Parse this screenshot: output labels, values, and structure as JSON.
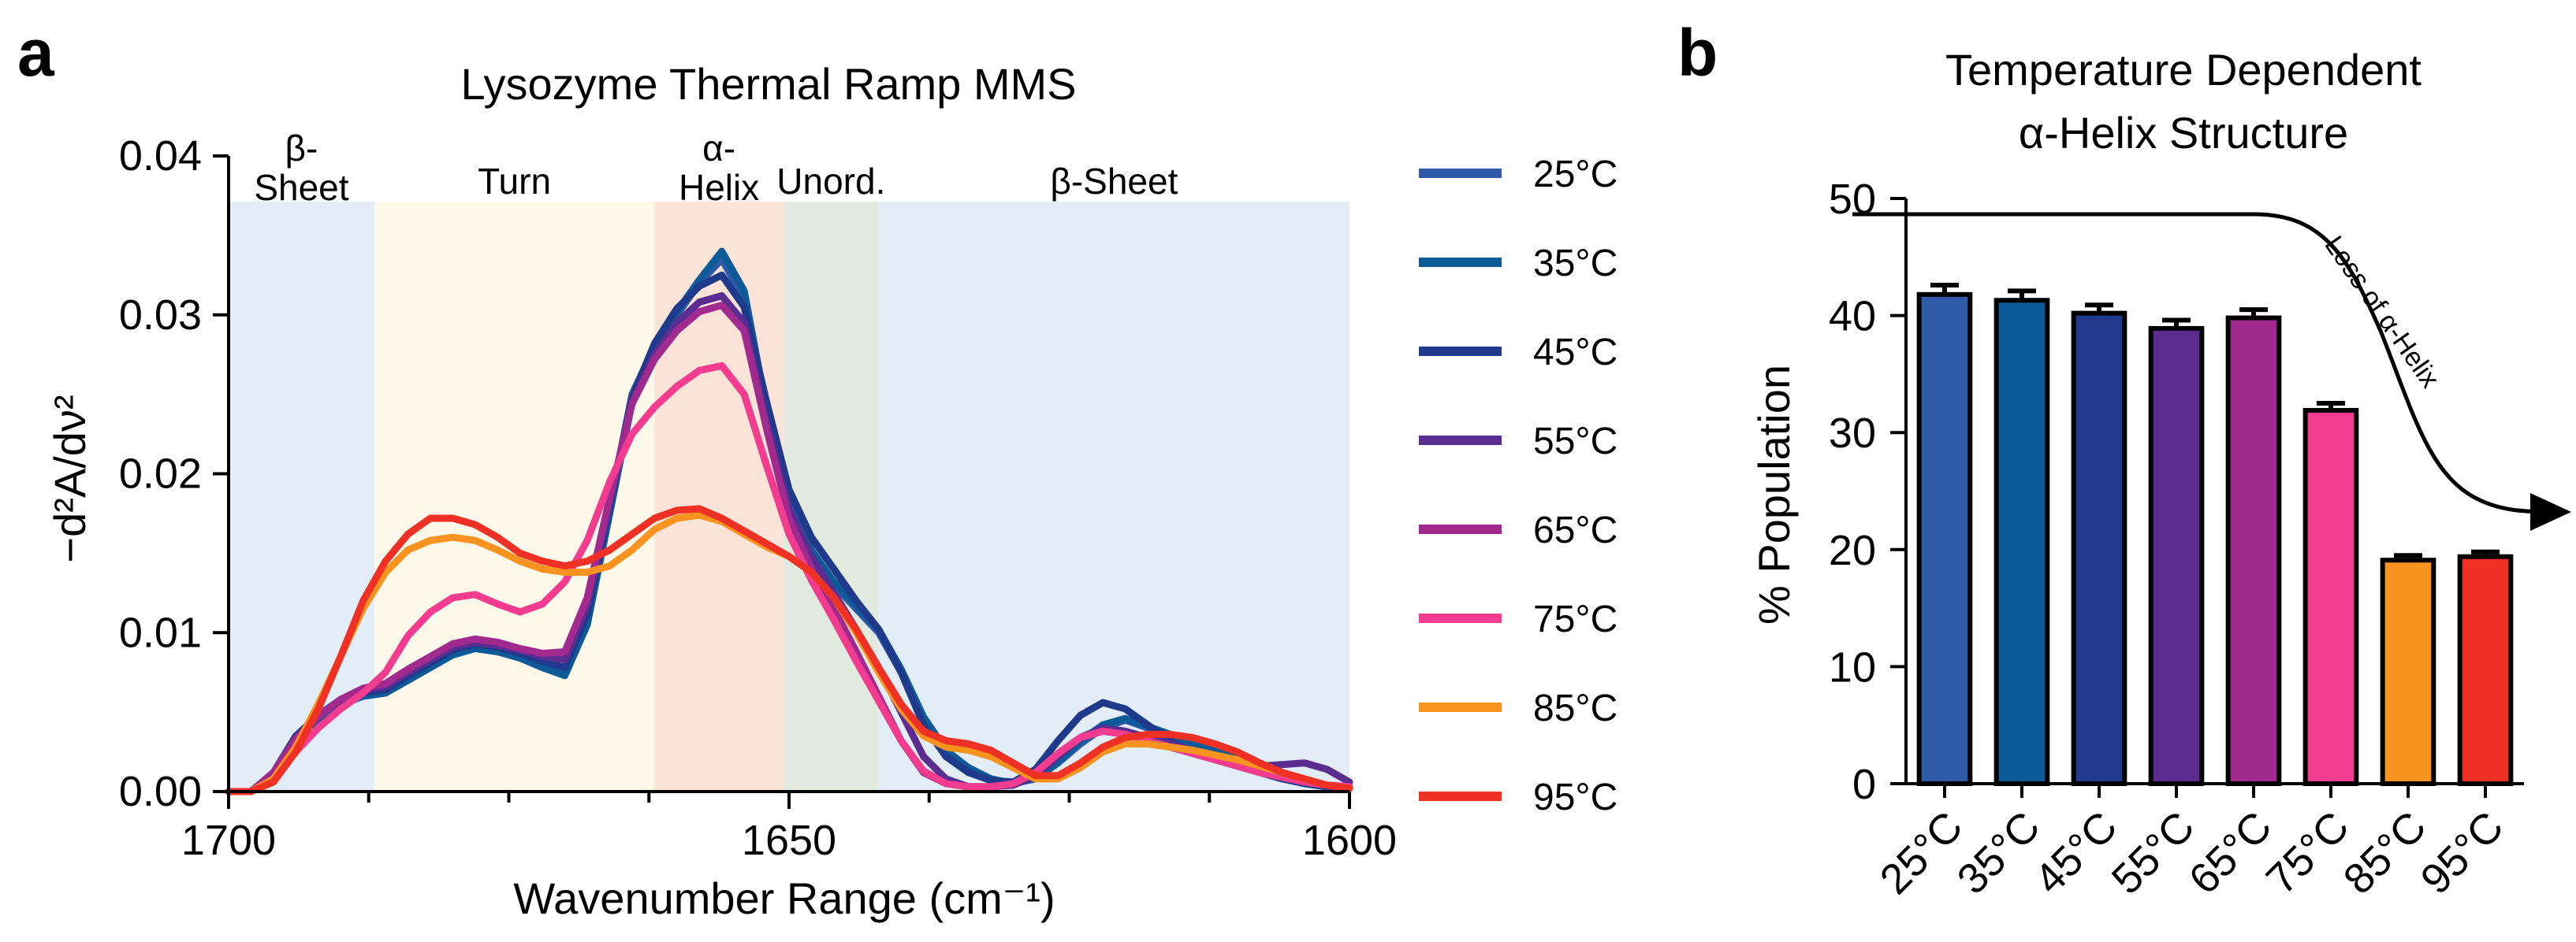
{
  "chart_data": [
    {
      "panel": "a",
      "type": "line",
      "title": "Lysozyme Thermal Ramp MMS",
      "xlabel": "Wavenumber Range (cm⁻¹)",
      "ylabel": "−d²A/dν²",
      "xlim": [
        1700,
        1600
      ],
      "ylim": [
        0,
        0.04
      ],
      "x_ticks": [
        1700,
        1650,
        1600
      ],
      "x_tick_labels": [
        "1700",
        "1650",
        "1600"
      ],
      "y_ticks": [
        0,
        0.01,
        0.02,
        0.03,
        0.04
      ],
      "y_tick_labels": [
        "0.00",
        "0.01",
        "0.02",
        "0.03",
        "0.04"
      ],
      "regions": [
        {
          "name": "β-Sheet",
          "label_lines": [
            "β-",
            "Sheet"
          ],
          "from": 1700,
          "to": 1687,
          "color": "#e3edf8"
        },
        {
          "name": "Turn",
          "label_lines": [
            "Turn"
          ],
          "from": 1687,
          "to": 1662,
          "color": "#fdf8ea"
        },
        {
          "name": "α-Helix",
          "label_lines": [
            "α-",
            "Helix"
          ],
          "from": 1662,
          "to": 1650.5,
          "color": "#fbe3d8"
        },
        {
          "name": "Unord.",
          "label_lines": [
            "Unord."
          ],
          "from": 1650.5,
          "to": 1642,
          "color": "#e3ebe0"
        },
        {
          "name": "β-Sheet",
          "label_lines": [
            "β-Sheet"
          ],
          "from": 1642,
          "to": 1600,
          "color": "#e3edf8"
        }
      ],
      "x": [
        1700,
        1698,
        1696,
        1694,
        1692,
        1690,
        1688,
        1686,
        1684,
        1682,
        1680,
        1678,
        1676,
        1674,
        1672,
        1670,
        1668,
        1666,
        1664,
        1662,
        1660,
        1658,
        1656,
        1654,
        1652,
        1650,
        1648,
        1646,
        1644,
        1642,
        1640,
        1638,
        1636,
        1634,
        1632,
        1630,
        1628,
        1626,
        1624,
        1622,
        1620,
        1618,
        1616,
        1614,
        1612,
        1610,
        1608,
        1606,
        1604,
        1602,
        1600
      ],
      "series": [
        {
          "name": "25°C",
          "label": "25°C",
          "color": "#2e5aa8",
          "values": [
            0.0,
            0.0,
            0.001,
            0.0035,
            0.0045,
            0.0055,
            0.006,
            0.0063,
            0.0072,
            0.008,
            0.0088,
            0.0092,
            0.009,
            0.0085,
            0.008,
            0.0075,
            0.011,
            0.018,
            0.025,
            0.028,
            0.03,
            0.032,
            0.0335,
            0.031,
            0.0235,
            0.018,
            0.015,
            0.013,
            0.0115,
            0.01,
            0.0075,
            0.0045,
            0.0025,
            0.0015,
            0.0008,
            0.0005,
            0.0008,
            0.0018,
            0.003,
            0.004,
            0.0045,
            0.004,
            0.0035,
            0.003,
            0.0025,
            0.002,
            0.0015,
            0.001,
            0.0005,
            0.0003,
            0.0003
          ]
        },
        {
          "name": "35°C",
          "label": "35°C",
          "color": "#0d5a99",
          "values": [
            0.0,
            0.0,
            0.001,
            0.0035,
            0.0045,
            0.0055,
            0.006,
            0.0062,
            0.007,
            0.0078,
            0.0086,
            0.009,
            0.0088,
            0.0084,
            0.0078,
            0.0073,
            0.0105,
            0.0175,
            0.0245,
            0.028,
            0.0302,
            0.0322,
            0.034,
            0.0315,
            0.024,
            0.0182,
            0.0152,
            0.0132,
            0.0117,
            0.0102,
            0.0077,
            0.0047,
            0.0026,
            0.0015,
            0.0008,
            0.0005,
            0.0009,
            0.0019,
            0.0032,
            0.0042,
            0.0046,
            0.0041,
            0.0036,
            0.0031,
            0.0026,
            0.0021,
            0.0016,
            0.0011,
            0.0006,
            0.0003,
            0.0003
          ]
        },
        {
          "name": "45°C",
          "label": "45°C",
          "color": "#1f3a8a",
          "values": [
            0.0,
            0.0,
            0.0012,
            0.0035,
            0.0048,
            0.0057,
            0.0062,
            0.0064,
            0.0073,
            0.0081,
            0.0089,
            0.0093,
            0.0091,
            0.0087,
            0.0082,
            0.0078,
            0.0112,
            0.018,
            0.0248,
            0.0282,
            0.0304,
            0.0318,
            0.0325,
            0.0305,
            0.0245,
            0.019,
            0.016,
            0.014,
            0.012,
            0.0102,
            0.0075,
            0.0042,
            0.0022,
            0.0012,
            0.0007,
            0.0006,
            0.0014,
            0.0032,
            0.0048,
            0.0056,
            0.0052,
            0.0042,
            0.0032,
            0.0025,
            0.002,
            0.0016,
            0.0012,
            0.0008,
            0.0005,
            0.0003,
            0.0002
          ]
        },
        {
          "name": "55°C",
          "label": "55°C",
          "color": "#5b2d91",
          "values": [
            0.0,
            0.0,
            0.0012,
            0.0034,
            0.0048,
            0.0058,
            0.0064,
            0.0066,
            0.0075,
            0.0083,
            0.0091,
            0.0094,
            0.0092,
            0.0089,
            0.0085,
            0.0083,
            0.0117,
            0.0182,
            0.0245,
            0.0275,
            0.0295,
            0.0308,
            0.0312,
            0.0295,
            0.0232,
            0.0178,
            0.0148,
            0.0125,
            0.0102,
            0.0078,
            0.005,
            0.0022,
            0.0008,
            0.0003,
            0.0003,
            0.0004,
            0.001,
            0.0022,
            0.0034,
            0.004,
            0.0038,
            0.0034,
            0.003,
            0.0026,
            0.0022,
            0.0018,
            0.0016,
            0.0017,
            0.0018,
            0.0014,
            0.0006
          ]
        },
        {
          "name": "65°C",
          "label": "65°C",
          "color": "#a12a8f",
          "values": [
            0.0,
            0.0,
            0.0012,
            0.0033,
            0.0047,
            0.0058,
            0.0065,
            0.0068,
            0.0077,
            0.0085,
            0.0093,
            0.0096,
            0.0094,
            0.009,
            0.0087,
            0.0088,
            0.0122,
            0.0185,
            0.0244,
            0.0272,
            0.029,
            0.0302,
            0.0306,
            0.029,
            0.0228,
            0.0172,
            0.014,
            0.0115,
            0.0088,
            0.006,
            0.0032,
            0.0012,
            0.0005,
            0.0003,
            0.0003,
            0.0005,
            0.0012,
            0.0024,
            0.0034,
            0.0038,
            0.0036,
            0.0032,
            0.0028,
            0.0024,
            0.002,
            0.0016,
            0.0012,
            0.0009,
            0.0006,
            0.0004,
            0.0003
          ]
        },
        {
          "name": "75°C",
          "label": "75°C",
          "color": "#f23c8f",
          "values": [
            0.0,
            0.0,
            0.0008,
            0.0025,
            0.004,
            0.0052,
            0.0062,
            0.0075,
            0.0098,
            0.0113,
            0.0122,
            0.0124,
            0.0118,
            0.0113,
            0.0118,
            0.0132,
            0.0158,
            0.0195,
            0.0225,
            0.0242,
            0.0255,
            0.0265,
            0.0268,
            0.025,
            0.0205,
            0.0162,
            0.0133,
            0.0108,
            0.0082,
            0.0057,
            0.0032,
            0.0013,
            0.0005,
            0.0003,
            0.0003,
            0.0005,
            0.0012,
            0.0024,
            0.0034,
            0.0038,
            0.0036,
            0.0032,
            0.0028,
            0.0024,
            0.002,
            0.0016,
            0.0012,
            0.0009,
            0.0006,
            0.0004,
            0.0003
          ]
        },
        {
          "name": "85°C",
          "label": "85°C",
          "color": "#f7931e",
          "values": [
            0.0,
            0.0,
            0.0008,
            0.0028,
            0.0055,
            0.0085,
            0.0115,
            0.0138,
            0.0152,
            0.0158,
            0.016,
            0.0158,
            0.0152,
            0.0145,
            0.014,
            0.0138,
            0.0138,
            0.0142,
            0.0152,
            0.0165,
            0.0172,
            0.0174,
            0.017,
            0.0162,
            0.0154,
            0.0148,
            0.0138,
            0.0122,
            0.01,
            0.0075,
            0.0052,
            0.0035,
            0.0028,
            0.0026,
            0.0022,
            0.0015,
            0.0008,
            0.0008,
            0.0015,
            0.0025,
            0.003,
            0.003,
            0.0028,
            0.0026,
            0.0023,
            0.002,
            0.0016,
            0.0012,
            0.0008,
            0.0004,
            0.0002
          ]
        },
        {
          "name": "95°C",
          "label": "95°C",
          "color": "#ee3124",
          "values": [
            0.0,
            0.0,
            0.0006,
            0.0025,
            0.0052,
            0.0085,
            0.012,
            0.0145,
            0.0162,
            0.0172,
            0.0172,
            0.0168,
            0.016,
            0.015,
            0.0145,
            0.0142,
            0.0145,
            0.0152,
            0.0162,
            0.0172,
            0.0177,
            0.0178,
            0.0172,
            0.0164,
            0.0156,
            0.0148,
            0.0138,
            0.0122,
            0.0102,
            0.0078,
            0.0055,
            0.0038,
            0.0032,
            0.003,
            0.0026,
            0.0018,
            0.001,
            0.001,
            0.0018,
            0.0028,
            0.0034,
            0.0036,
            0.0036,
            0.0034,
            0.003,
            0.0025,
            0.0018,
            0.0012,
            0.0008,
            0.0004,
            0.0002
          ]
        }
      ]
    },
    {
      "panel": "b",
      "type": "bar",
      "title_lines": [
        "Temperature Dependent",
        "α-Helix Structure"
      ],
      "title": "Temperature Dependent α-Helix Structure",
      "xlabel": "",
      "ylabel": "% Population",
      "ylim": [
        0,
        50
      ],
      "y_ticks": [
        0,
        10,
        20,
        30,
        40,
        50
      ],
      "categories": [
        "25°C",
        "35°C",
        "45°C",
        "55°C",
        "65°C",
        "75°C",
        "85°C",
        "95°C"
      ],
      "values": [
        41.8,
        41.3,
        40.2,
        38.9,
        39.8,
        31.9,
        19.1,
        19.4
      ],
      "errors": [
        0.8,
        0.8,
        0.7,
        0.7,
        0.7,
        0.6,
        0.4,
        0.4
      ],
      "colors": [
        "#2e5aa8",
        "#0d5a99",
        "#1f3a8a",
        "#5b2d91",
        "#a12a8f",
        "#f23c8f",
        "#f7931e",
        "#ee3124"
      ],
      "annotation": "Loss of α-Helix"
    }
  ]
}
